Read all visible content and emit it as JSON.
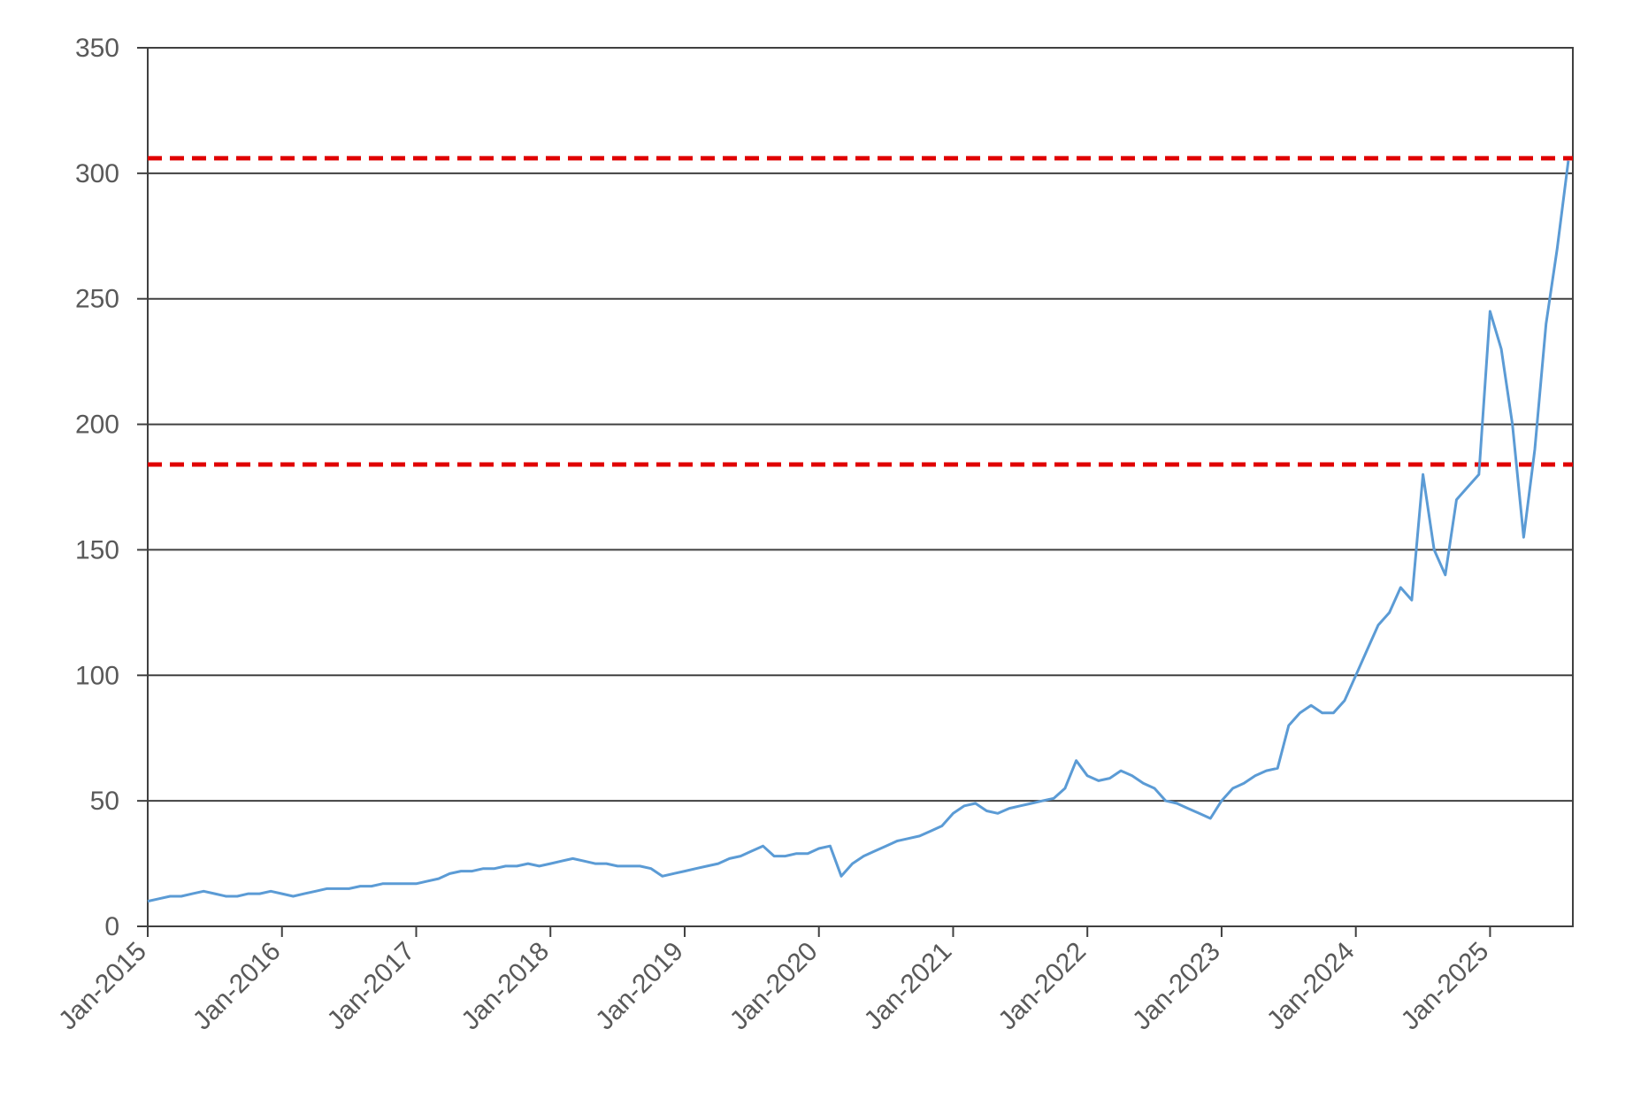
{
  "chart_data": {
    "type": "line",
    "x": [
      "Jan-2015",
      "Feb-2015",
      "Mar-2015",
      "Apr-2015",
      "May-2015",
      "Jun-2015",
      "Jul-2015",
      "Aug-2015",
      "Sep-2015",
      "Oct-2015",
      "Nov-2015",
      "Dec-2015",
      "Jan-2016",
      "Feb-2016",
      "Mar-2016",
      "Apr-2016",
      "May-2016",
      "Jun-2016",
      "Jul-2016",
      "Aug-2016",
      "Sep-2016",
      "Oct-2016",
      "Nov-2016",
      "Dec-2016",
      "Jan-2017",
      "Feb-2017",
      "Mar-2017",
      "Apr-2017",
      "May-2017",
      "Jun-2017",
      "Jul-2017",
      "Aug-2017",
      "Sep-2017",
      "Oct-2017",
      "Nov-2017",
      "Dec-2017",
      "Jan-2018",
      "Feb-2018",
      "Mar-2018",
      "Apr-2018",
      "May-2018",
      "Jun-2018",
      "Jul-2018",
      "Aug-2018",
      "Sep-2018",
      "Oct-2018",
      "Nov-2018",
      "Dec-2018",
      "Jan-2019",
      "Feb-2019",
      "Mar-2019",
      "Apr-2019",
      "May-2019",
      "Jun-2019",
      "Jul-2019",
      "Aug-2019",
      "Sep-2019",
      "Oct-2019",
      "Nov-2019",
      "Dec-2019",
      "Jan-2020",
      "Feb-2020",
      "Mar-2020",
      "Apr-2020",
      "May-2020",
      "Jun-2020",
      "Jul-2020",
      "Aug-2020",
      "Sep-2020",
      "Oct-2020",
      "Nov-2020",
      "Dec-2020",
      "Jan-2021",
      "Feb-2021",
      "Mar-2021",
      "Apr-2021",
      "May-2021",
      "Jun-2021",
      "Jul-2021",
      "Aug-2021",
      "Sep-2021",
      "Oct-2021",
      "Nov-2021",
      "Dec-2021",
      "Jan-2022",
      "Feb-2022",
      "Mar-2022",
      "Apr-2022",
      "May-2022",
      "Jun-2022",
      "Jul-2022",
      "Aug-2022",
      "Sep-2022",
      "Oct-2022",
      "Nov-2022",
      "Dec-2022",
      "Jan-2023",
      "Feb-2023",
      "Mar-2023",
      "Apr-2023",
      "May-2023",
      "Jun-2023",
      "Jul-2023",
      "Aug-2023",
      "Sep-2023",
      "Oct-2023",
      "Nov-2023",
      "Dec-2023",
      "Jan-2024",
      "Feb-2024",
      "Mar-2024",
      "Apr-2024",
      "May-2024",
      "Jun-2024",
      "Jul-2024",
      "Aug-2024",
      "Sep-2024",
      "Oct-2024",
      "Nov-2024",
      "Dec-2024",
      "Jan-2025",
      "Feb-2025",
      "Mar-2025",
      "Apr-2025",
      "May-2025",
      "Jun-2025",
      "Jul-2025",
      "Aug-2025"
    ],
    "values": [
      10,
      11,
      12,
      12,
      13,
      14,
      13,
      12,
      12,
      13,
      13,
      14,
      13,
      12,
      13,
      14,
      15,
      15,
      15,
      16,
      16,
      17,
      17,
      17,
      17,
      18,
      19,
      21,
      22,
      22,
      23,
      23,
      24,
      24,
      25,
      24,
      25,
      26,
      27,
      26,
      25,
      25,
      24,
      24,
      24,
      23,
      20,
      21,
      22,
      23,
      24,
      25,
      27,
      28,
      30,
      32,
      28,
      28,
      29,
      29,
      31,
      32,
      20,
      25,
      28,
      30,
      32,
      34,
      35,
      36,
      38,
      40,
      45,
      48,
      49,
      46,
      45,
      47,
      48,
      49,
      50,
      51,
      55,
      66,
      60,
      58,
      59,
      62,
      60,
      57,
      55,
      50,
      49,
      47,
      45,
      43,
      50,
      55,
      57,
      60,
      62,
      63,
      80,
      85,
      88,
      85,
      85,
      90,
      100,
      110,
      120,
      125,
      135,
      130,
      180,
      150,
      140,
      170,
      175,
      180,
      245,
      230,
      200,
      155,
      190,
      240,
      270,
      305
    ],
    "color": "#5b9bd5",
    "xticks": [
      "Jan-2015",
      "Jan-2016",
      "Jan-2017",
      "Jan-2018",
      "Jan-2019",
      "Jan-2020",
      "Jan-2021",
      "Jan-2022",
      "Jan-2023",
      "Jan-2024",
      "Jan-2025"
    ],
    "ylim": [
      0,
      350
    ],
    "yticks": [
      0,
      50,
      100,
      150,
      200,
      250,
      300,
      350
    ],
    "grid": true,
    "reference_lines": [
      {
        "value": 306,
        "color": "#e00000"
      },
      {
        "value": 184,
        "color": "#e00000"
      }
    ]
  }
}
